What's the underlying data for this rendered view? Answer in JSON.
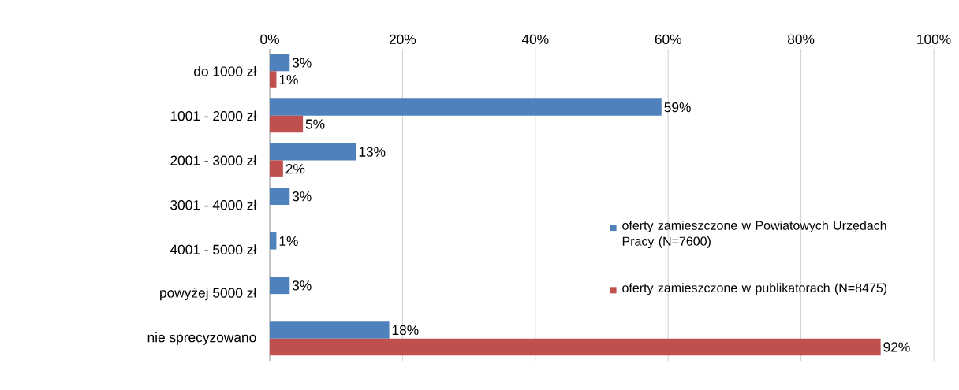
{
  "chart_data": {
    "type": "bar",
    "orientation": "horizontal",
    "categories": [
      "do 1000 zł",
      "1001 - 2000 zł",
      "2001 - 3000 zł",
      "3001 - 4000 zł",
      "4001 - 5000 zł",
      "powyżej 5000 zł",
      "nie sprecyzowano"
    ],
    "series": [
      {
        "name": "oferty zamieszczone w Powiatowych Urzędach Pracy (N=7600)",
        "color": "#4f81bd",
        "values": [
          3,
          59,
          13,
          3,
          1,
          3,
          18
        ],
        "value_labels": [
          "3%",
          "59%",
          "13%",
          "3%",
          "1%",
          "3%",
          "18%"
        ]
      },
      {
        "name": "oferty zamieszczone w publikatorach (N=8475)",
        "color": "#c0504d",
        "values": [
          1,
          5,
          2,
          null,
          null,
          null,
          92
        ],
        "value_labels": [
          "1%",
          "5%",
          "2%",
          null,
          null,
          null,
          "92%"
        ]
      }
    ],
    "xlim": [
      0,
      100
    ],
    "xticks": [
      {
        "value": 0,
        "label": "0%"
      },
      {
        "value": 20,
        "label": "20%"
      },
      {
        "value": 40,
        "label": "40%"
      },
      {
        "value": 60,
        "label": "60%"
      },
      {
        "value": 80,
        "label": "80%"
      },
      {
        "value": 100,
        "label": "100%"
      }
    ],
    "grid": "x",
    "legend": "right"
  }
}
